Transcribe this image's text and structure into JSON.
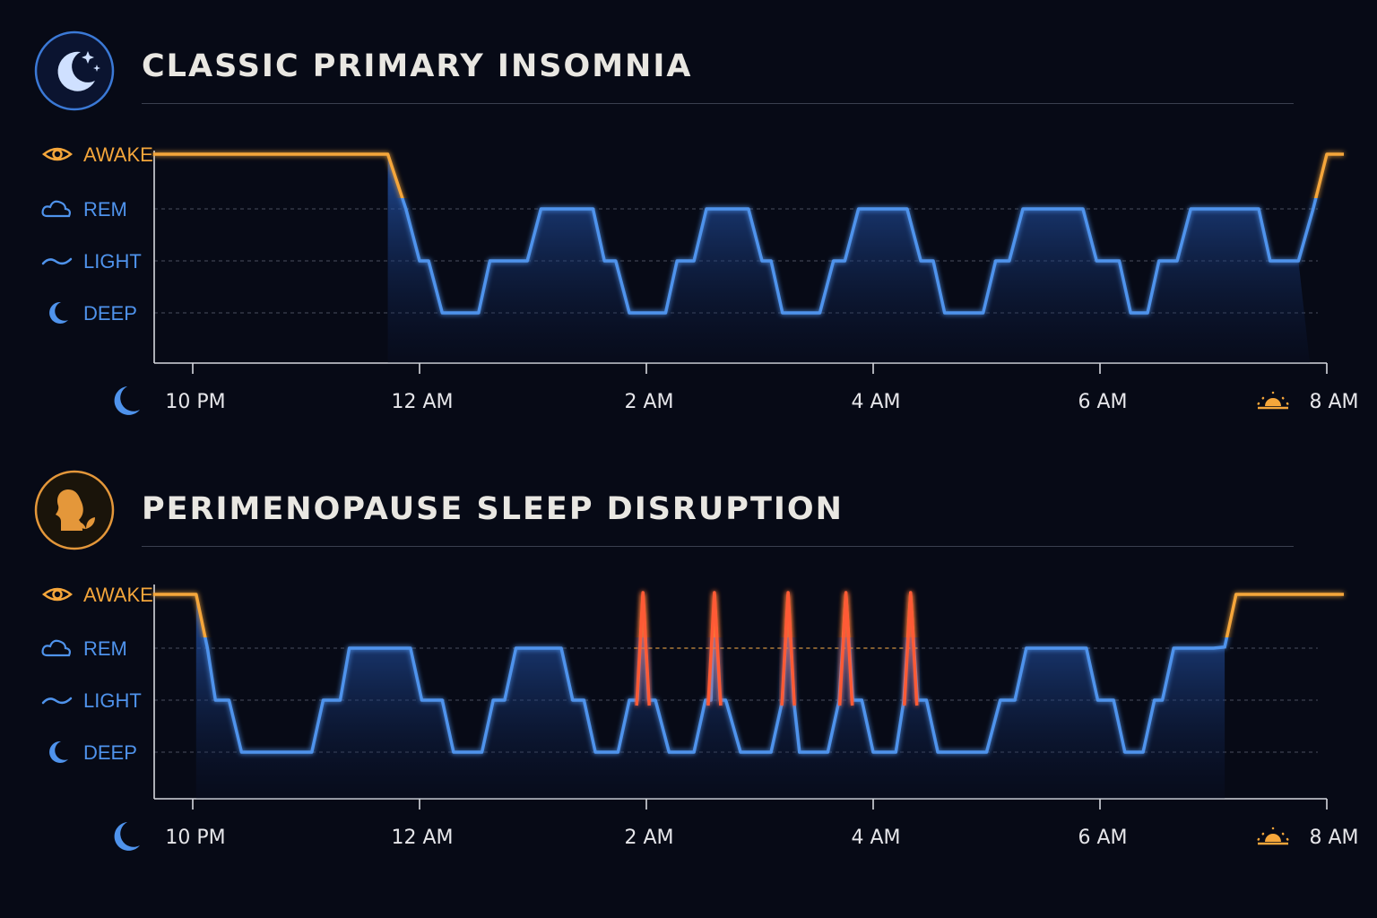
{
  "colors": {
    "awake": "#f5a63b",
    "sleep": "#4f93ec",
    "disruption": "#ff5a36",
    "axis": "#d6d8de",
    "grid": "#4a4f5f",
    "title": "#e9e7e2"
  },
  "icons": {
    "stage_awake": "eye-icon",
    "stage_rem": "cloud-icon",
    "stage_light": "wave-icon",
    "stage_deep": "crescent-moon-icon",
    "axis_start": "moon-icon",
    "axis_end": "sunrise-icon",
    "badge_1": "moon-stars-icon",
    "badge_2": "woman-profile-leaf-icon"
  },
  "chart_data": [
    {
      "type": "line",
      "title": "CLASSIC PRIMARY INSOMNIA",
      "y_categories": [
        "DEEP",
        "LIGHT",
        "REM",
        "AWAKE"
      ],
      "x_ticks": [
        {
          "h": 0,
          "label": "10 PM"
        },
        {
          "h": 2,
          "label": "12 AM"
        },
        {
          "h": 4,
          "label": "2 AM"
        },
        {
          "h": 6,
          "label": "4 AM"
        },
        {
          "h": 8,
          "label": "6 AM"
        },
        {
          "h": 10,
          "label": "8 AM"
        }
      ],
      "xlim_hours": [
        -0.35,
        10.15
      ],
      "grid": "dashed horizontal at REM, LIGHT, DEEP",
      "hypnogram": [
        [
          -0.35,
          3
        ],
        [
          1.72,
          3
        ],
        [
          1.88,
          2
        ],
        [
          2.0,
          1
        ],
        [
          2.08,
          1
        ],
        [
          2.2,
          0
        ],
        [
          2.52,
          0
        ],
        [
          2.62,
          1
        ],
        [
          2.95,
          1
        ],
        [
          3.07,
          2
        ],
        [
          3.53,
          2
        ],
        [
          3.63,
          1
        ],
        [
          3.73,
          1
        ],
        [
          3.85,
          0
        ],
        [
          4.17,
          0
        ],
        [
          4.27,
          1
        ],
        [
          4.42,
          1
        ],
        [
          4.53,
          2
        ],
        [
          4.9,
          2
        ],
        [
          5.02,
          1
        ],
        [
          5.1,
          1
        ],
        [
          5.2,
          0
        ],
        [
          5.53,
          0
        ],
        [
          5.65,
          1
        ],
        [
          5.75,
          1
        ],
        [
          5.87,
          2
        ],
        [
          6.3,
          2
        ],
        [
          6.42,
          1
        ],
        [
          6.53,
          1
        ],
        [
          6.63,
          0
        ],
        [
          6.97,
          0
        ],
        [
          7.08,
          1
        ],
        [
          7.2,
          1
        ],
        [
          7.32,
          2
        ],
        [
          7.85,
          2
        ],
        [
          7.97,
          1
        ],
        [
          8.17,
          1
        ],
        [
          8.27,
          0
        ],
        [
          8.42,
          0
        ],
        [
          8.52,
          1
        ],
        [
          8.68,
          1
        ],
        [
          8.8,
          2
        ],
        [
          9.4,
          2
        ],
        [
          9.5,
          1
        ],
        [
          9.75,
          1
        ],
        [
          9.88,
          2
        ],
        [
          10.0,
          3
        ],
        [
          10.15,
          3
        ]
      ],
      "wake_hour": 9.85
    },
    {
      "type": "line",
      "title": "PERIMENOPAUSE SLEEP DISRUPTION",
      "y_categories": [
        "DEEP",
        "LIGHT",
        "REM",
        "AWAKE"
      ],
      "x_ticks": [
        {
          "h": 0,
          "label": "10 PM"
        },
        {
          "h": 2,
          "label": "12 AM"
        },
        {
          "h": 4,
          "label": "2 AM"
        },
        {
          "h": 6,
          "label": "4 AM"
        },
        {
          "h": 8,
          "label": "6 AM"
        },
        {
          "h": 10,
          "label": "8 AM"
        }
      ],
      "xlim_hours": [
        -0.35,
        10.15
      ],
      "grid": "dashed horizontal at REM, LIGHT, DEEP",
      "hypnogram": [
        [
          -0.35,
          3
        ],
        [
          0.03,
          3
        ],
        [
          0.13,
          2
        ],
        [
          0.2,
          1
        ],
        [
          0.32,
          1
        ],
        [
          0.43,
          0
        ],
        [
          1.05,
          0
        ],
        [
          1.15,
          1
        ],
        [
          1.3,
          1
        ],
        [
          1.38,
          2
        ],
        [
          1.92,
          2
        ],
        [
          2.02,
          1
        ],
        [
          2.2,
          1
        ],
        [
          2.3,
          0
        ],
        [
          2.55,
          0
        ],
        [
          2.65,
          1
        ],
        [
          2.75,
          1
        ],
        [
          2.85,
          2
        ],
        [
          3.25,
          2
        ],
        [
          3.35,
          1
        ],
        [
          3.45,
          1
        ],
        [
          3.55,
          0
        ],
        [
          3.75,
          0
        ],
        [
          3.85,
          1
        ],
        [
          3.92,
          1
        ],
        [
          3.97,
          3
        ],
        [
          4.02,
          1
        ],
        [
          4.08,
          1
        ],
        [
          4.2,
          0
        ],
        [
          4.42,
          0
        ],
        [
          4.52,
          1
        ],
        [
          4.57,
          1
        ],
        [
          4.6,
          3
        ],
        [
          4.65,
          1
        ],
        [
          4.7,
          1
        ],
        [
          4.83,
          0
        ],
        [
          5.1,
          0
        ],
        [
          5.2,
          1
        ],
        [
          5.25,
          3
        ],
        [
          5.3,
          1
        ],
        [
          5.35,
          0
        ],
        [
          5.6,
          0
        ],
        [
          5.7,
          1
        ],
        [
          5.76,
          3
        ],
        [
          5.82,
          1
        ],
        [
          5.9,
          1
        ],
        [
          6.0,
          0
        ],
        [
          6.2,
          0
        ],
        [
          6.27,
          1
        ],
        [
          6.33,
          3
        ],
        [
          6.39,
          1
        ],
        [
          6.47,
          1
        ],
        [
          6.57,
          0
        ],
        [
          7.0,
          0
        ],
        [
          7.12,
          1
        ],
        [
          7.25,
          1
        ],
        [
          7.35,
          2
        ],
        [
          7.88,
          2
        ],
        [
          7.98,
          1
        ],
        [
          8.12,
          1
        ],
        [
          8.22,
          0
        ],
        [
          8.38,
          0
        ],
        [
          8.48,
          1
        ],
        [
          8.55,
          1
        ],
        [
          8.65,
          2
        ],
        [
          9.0,
          2
        ],
        [
          9.1,
          2.02
        ],
        [
          9.2,
          3
        ],
        [
          10.15,
          3
        ]
      ],
      "wake_hour": 9.1,
      "disruption_hours": [
        3.97,
        4.6,
        5.25,
        5.76,
        6.33
      ]
    }
  ],
  "panels": [
    {
      "title": "CLASSIC PRIMARY INSOMNIA",
      "stages": [
        "AWAKE",
        "REM",
        "LIGHT",
        "DEEP"
      ],
      "ticks": [
        "10 PM",
        "12 AM",
        "2 AM",
        "4 AM",
        "6 AM",
        "8 AM"
      ]
    },
    {
      "title": "PERIMENOPAUSE SLEEP DISRUPTION",
      "stages": [
        "AWAKE",
        "REM",
        "LIGHT",
        "DEEP"
      ],
      "ticks": [
        "10 PM",
        "12 AM",
        "2 AM",
        "4 AM",
        "6 AM",
        "8 AM"
      ]
    }
  ]
}
